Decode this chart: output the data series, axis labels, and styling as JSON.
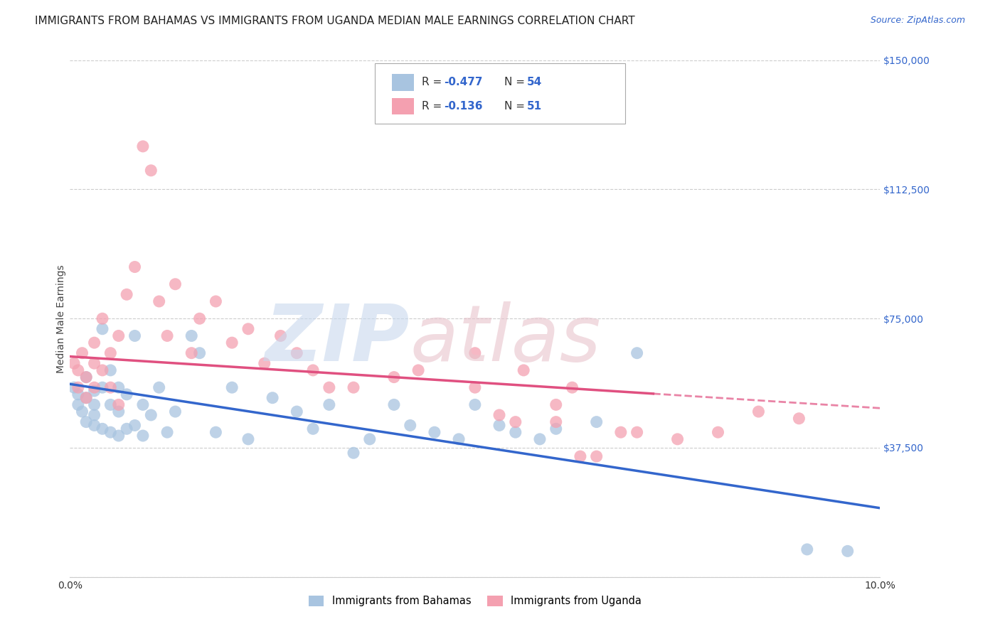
{
  "title": "IMMIGRANTS FROM BAHAMAS VS IMMIGRANTS FROM UGANDA MEDIAN MALE EARNINGS CORRELATION CHART",
  "source": "Source: ZipAtlas.com",
  "ylabel": "Median Male Earnings",
  "xlim": [
    0.0,
    0.1
  ],
  "ylim": [
    0,
    150000
  ],
  "yticks": [
    0,
    37500,
    75000,
    112500,
    150000
  ],
  "ytick_labels": [
    "",
    "$37,500",
    "$75,000",
    "$112,500",
    "$150,000"
  ],
  "xticks": [
    0.0,
    0.02,
    0.04,
    0.06,
    0.08,
    0.1
  ],
  "xtick_labels": [
    "0.0%",
    "",
    "",
    "",
    "",
    "10.0%"
  ],
  "series1_name": "Immigrants from Bahamas",
  "series1_color": "#a8c4e0",
  "series1_line_color": "#3366cc",
  "series1_R": -0.477,
  "series1_N": 54,
  "series2_name": "Immigrants from Uganda",
  "series2_color": "#f4a0b0",
  "series2_line_color": "#e05080",
  "series2_R": -0.136,
  "series2_N": 51,
  "grid_color": "#cccccc",
  "background_color": "#ffffff",
  "title_fontsize": 11,
  "axis_label_fontsize": 10,
  "tick_fontsize": 10,
  "series1_x": [
    0.0005,
    0.001,
    0.001,
    0.0015,
    0.002,
    0.002,
    0.002,
    0.003,
    0.003,
    0.003,
    0.003,
    0.004,
    0.004,
    0.004,
    0.005,
    0.005,
    0.005,
    0.006,
    0.006,
    0.006,
    0.007,
    0.007,
    0.008,
    0.008,
    0.009,
    0.009,
    0.01,
    0.011,
    0.012,
    0.013,
    0.015,
    0.016,
    0.018,
    0.02,
    0.022,
    0.025,
    0.028,
    0.03,
    0.032,
    0.035,
    0.037,
    0.04,
    0.042,
    0.045,
    0.048,
    0.05,
    0.053,
    0.055,
    0.058,
    0.06,
    0.065,
    0.07,
    0.091,
    0.096
  ],
  "series1_y": [
    55000,
    53000,
    50000,
    48000,
    58000,
    52000,
    45000,
    54000,
    50000,
    47000,
    44000,
    72000,
    55000,
    43000,
    60000,
    50000,
    42000,
    55000,
    48000,
    41000,
    53000,
    43000,
    70000,
    44000,
    50000,
    41000,
    47000,
    55000,
    42000,
    48000,
    70000,
    65000,
    42000,
    55000,
    40000,
    52000,
    48000,
    43000,
    50000,
    36000,
    40000,
    50000,
    44000,
    42000,
    40000,
    50000,
    44000,
    42000,
    40000,
    43000,
    45000,
    65000,
    8000,
    7500
  ],
  "series2_x": [
    0.0005,
    0.001,
    0.001,
    0.0015,
    0.002,
    0.002,
    0.003,
    0.003,
    0.003,
    0.004,
    0.004,
    0.005,
    0.005,
    0.006,
    0.006,
    0.007,
    0.008,
    0.009,
    0.01,
    0.011,
    0.012,
    0.013,
    0.015,
    0.016,
    0.018,
    0.02,
    0.022,
    0.024,
    0.026,
    0.028,
    0.03,
    0.032,
    0.035,
    0.04,
    0.043,
    0.05,
    0.053,
    0.056,
    0.06,
    0.062,
    0.065,
    0.068,
    0.08,
    0.085,
    0.09,
    0.05,
    0.055,
    0.06,
    0.063,
    0.07,
    0.075
  ],
  "series2_y": [
    62000,
    60000,
    55000,
    65000,
    58000,
    52000,
    68000,
    62000,
    55000,
    75000,
    60000,
    65000,
    55000,
    70000,
    50000,
    82000,
    90000,
    125000,
    118000,
    80000,
    70000,
    85000,
    65000,
    75000,
    80000,
    68000,
    72000,
    62000,
    70000,
    65000,
    60000,
    55000,
    55000,
    58000,
    60000,
    55000,
    47000,
    60000,
    45000,
    55000,
    35000,
    42000,
    42000,
    48000,
    46000,
    65000,
    45000,
    50000,
    35000,
    42000,
    40000
  ],
  "trendline1_x0": 0.0,
  "trendline1_y0": 56000,
  "trendline1_x1": 0.1,
  "trendline1_y1": 20000,
  "trendline2_x0": 0.0,
  "trendline2_y0": 64000,
  "trendline2_x1": 0.1,
  "trendline2_y1": 49000,
  "trendline2_solid_end": 0.072
}
